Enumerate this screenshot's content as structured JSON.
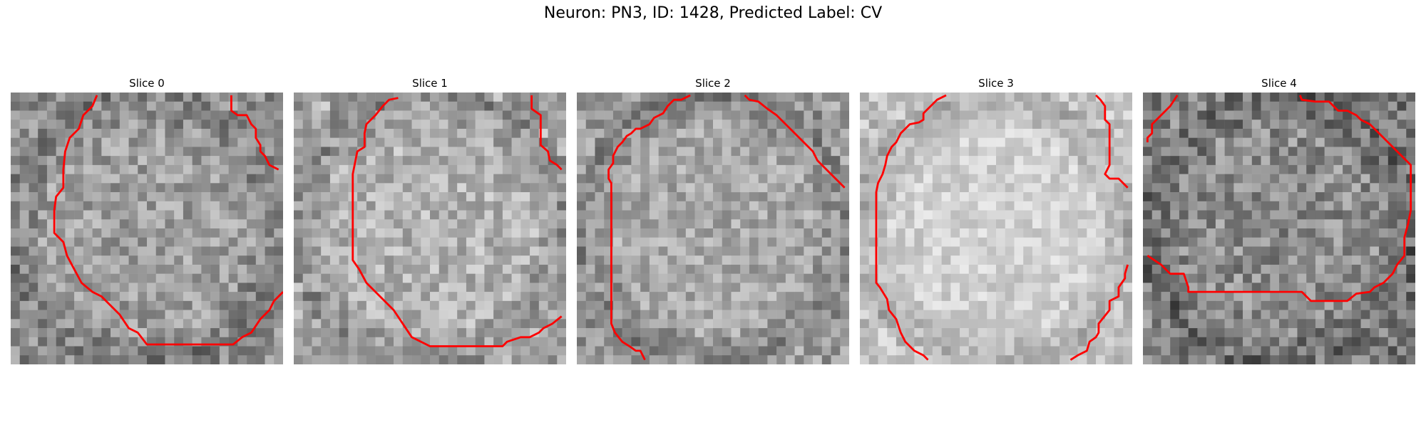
{
  "title": "Neuron: PN3, ID: 1428, Predicted Label: CV",
  "contour_color": "#ff0000",
  "slices": [
    {
      "label": "Slice 0",
      "seed": 11,
      "bright": 0.62,
      "contrast": 0.16
    },
    {
      "label": "Slice 1",
      "seed": 23,
      "bright": 0.7,
      "contrast": 0.15
    },
    {
      "label": "Slice 2",
      "seed": 37,
      "bright": 0.66,
      "contrast": 0.14
    },
    {
      "label": "Slice 3",
      "seed": 41,
      "bright": 0.82,
      "contrast": 0.1
    },
    {
      "label": "Slice 4",
      "seed": 53,
      "bright": 0.55,
      "contrast": 0.18
    }
  ]
}
